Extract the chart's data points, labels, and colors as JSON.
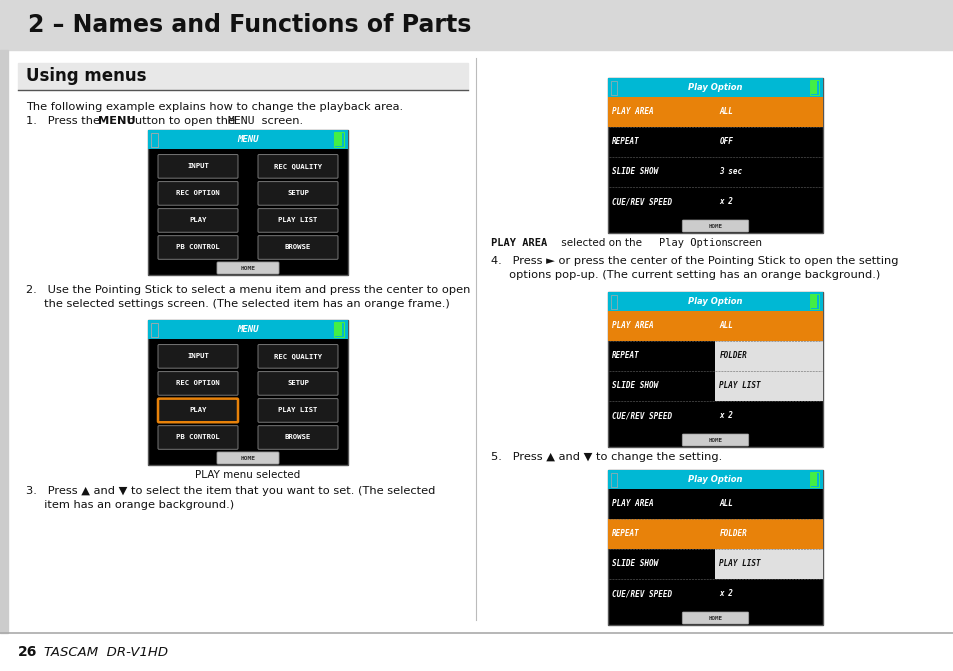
{
  "title": "2 – Names and Functions of Parts",
  "section": "Using menus",
  "bg_color": "#ffffff",
  "header_bg": "#d8d8d8",
  "section_bg": "#e8e8e8",
  "cyan": "#00b8d4",
  "orange": "#e8820a",
  "footer_text": "26  TASCAM  DR-V1HD",
  "menu_buttons": [
    [
      "INPUT",
      "REC QUALITY"
    ],
    [
      "REC OPTION",
      "SETUP"
    ],
    [
      "PLAY",
      "PLAY LIST"
    ],
    [
      "PB CONTROL",
      "BROWSE"
    ]
  ],
  "play_option_rows_1": [
    [
      "PLAY AREA",
      "ALL"
    ],
    [
      "REPEAT",
      "OFF"
    ],
    [
      "SLIDE SHOW",
      "3 sec"
    ],
    [
      "CUE/REV SPEED",
      "x 2"
    ]
  ],
  "play_option_rows_2": [
    [
      "PLAY AREA",
      "ALL"
    ],
    [
      "REPEAT",
      "FOLDER"
    ],
    [
      "SLIDE SHOW",
      "PLAY LIST"
    ],
    [
      "CUE/REV SPEED",
      "x 2"
    ]
  ]
}
